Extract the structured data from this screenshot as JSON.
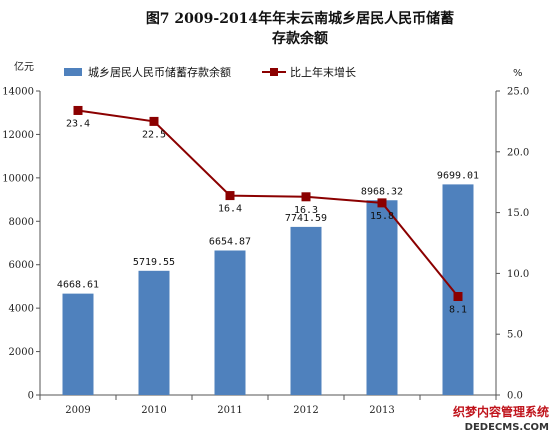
{
  "chart_data": {
    "type": "bar+line",
    "title_line1": "图7   2009-2014年年末云南城乡居民人民币储蓄",
    "title_line2": "存款余额",
    "left_unit": "亿元",
    "right_unit": "%",
    "categories": [
      "2009",
      "2010",
      "2011",
      "2012",
      "2013",
      ""
    ],
    "left_axis": {
      "ylim": [
        0,
        14000
      ],
      "ticks": [
        "0",
        "2000",
        "4000",
        "6000",
        "8000",
        "10000",
        "12000",
        "14000"
      ]
    },
    "right_axis": {
      "ylim": [
        0,
        25
      ],
      "ticks": [
        "0.0",
        "5.0",
        "10.0",
        "15.0",
        "20.0",
        "25.0"
      ]
    },
    "series": [
      {
        "name": "城乡居民人民币储蓄存款余额",
        "kind": "bar",
        "color": "#4f81bd",
        "values": [
          4668.61,
          5719.55,
          6654.87,
          7741.59,
          8968.32,
          9699.01
        ],
        "labels": [
          "4668.61",
          "5719.55",
          "6654.87",
          "7741.59",
          "8968.32",
          "9699.01"
        ]
      },
      {
        "name": "比上年末增长",
        "kind": "line",
        "color": "#8b0000",
        "values": [
          23.4,
          22.5,
          16.4,
          16.3,
          15.8,
          8.1
        ],
        "labels": [
          "23.4",
          "22.5",
          "16.4",
          "16.3",
          "15.8",
          "8.1"
        ]
      }
    ],
    "grid": false,
    "legend_position": "top"
  },
  "watermark": {
    "line1": "织梦内容管理系统",
    "line2": "DEDECMS.COM"
  }
}
